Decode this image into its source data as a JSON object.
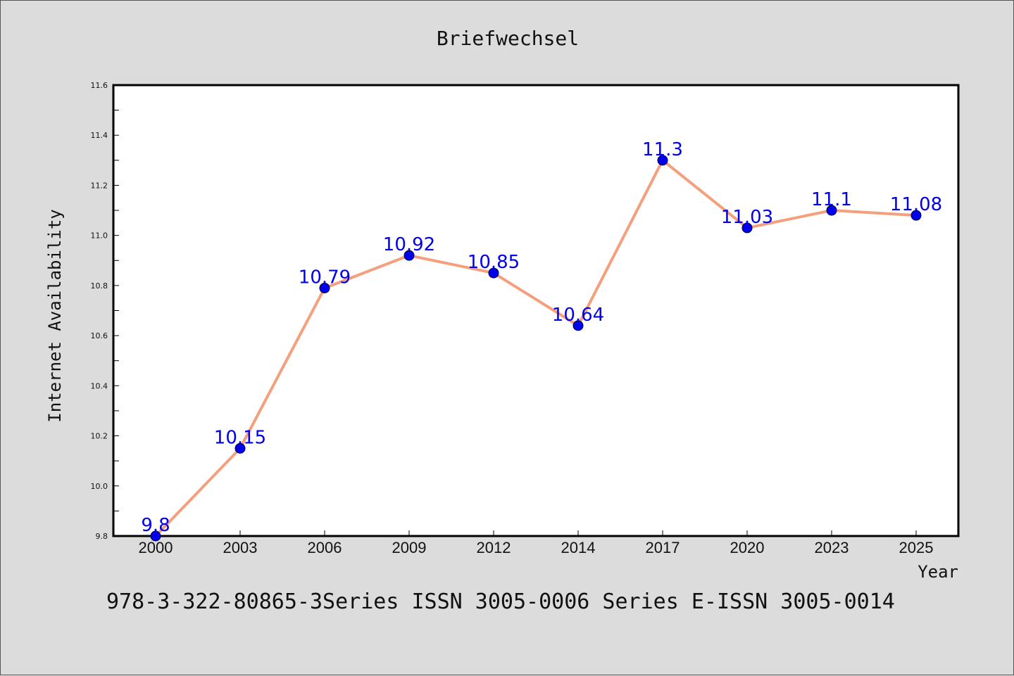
{
  "chart_data": {
    "type": "line",
    "title": "Briefwechsel",
    "xlabel": "Year",
    "ylabel": "Internet Availability",
    "categories": [
      "2000",
      "2003",
      "2006",
      "2009",
      "2012",
      "2014",
      "2017",
      "2020",
      "2023",
      "2025"
    ],
    "series": [
      {
        "values": [
          9.8,
          10.15,
          10.79,
          10.92,
          10.85,
          10.64,
          11.3,
          11.03,
          11.1,
          11.08
        ]
      }
    ],
    "data_labels": [
      "9.8",
      "10.15",
      "10.79",
      "10.92",
      "10.85",
      "10.64",
      "11.3",
      "11.03",
      "11.1",
      "11.08"
    ],
    "ylim": [
      9.8,
      11.6
    ],
    "yticks": [
      "9.8",
      "10.0",
      "10.2",
      "10.4",
      "10.6",
      "10.8",
      "11.0",
      "11.2",
      "11.4",
      "11.6"
    ],
    "grid": false,
    "legend": "none",
    "colors": {
      "line": "#f4a07e",
      "marker": "#0000ee",
      "label": "#0000ee",
      "plot_bg": "#ffffff",
      "page_bg": "#dcdcdc"
    }
  },
  "footer": {
    "text": "978-3-322-80865-3Series ISSN 3005-0006 Series E-ISSN 3005-0014"
  }
}
